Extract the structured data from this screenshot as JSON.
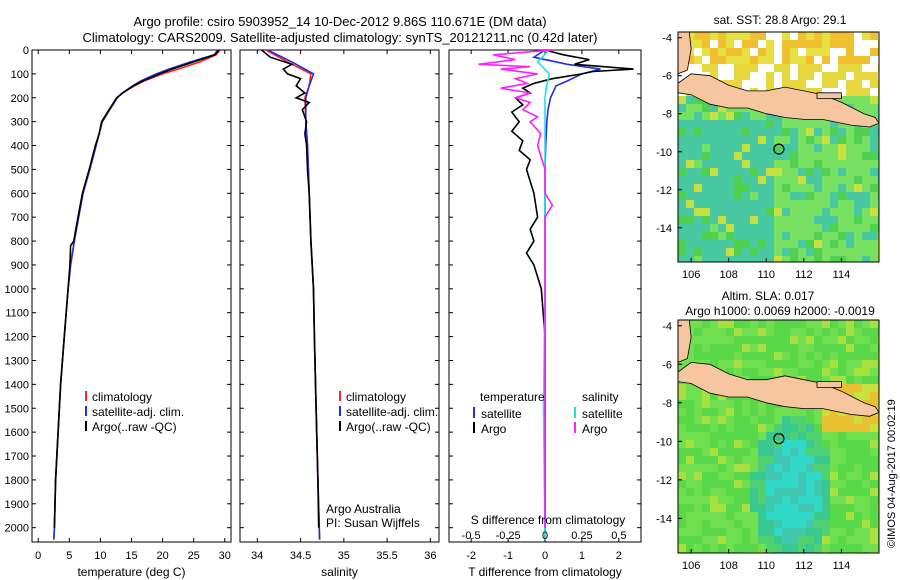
{
  "header": {
    "title_line1": "Argo profile: csiro 5903952_14 10-Dec-2012 9.86S 110.671E (DM data)",
    "title_line2": "Climatology: CARS2009. Satellite-adjusted climatology: synTS_20121211.nc (0.42d later)"
  },
  "credit": "©IMOS 04-Aug-2017 00:02:19",
  "colors": {
    "clim": "#ff2020",
    "sat": "#2030e0",
    "argo": "#000000",
    "sal_sat": "#20e0e8",
    "sal_argo": "#ff20ff",
    "land": "#f5c6a0",
    "sea_green": "#5ad24a",
    "sea_teal": "#3ec8a0",
    "warm": "#f0c020"
  },
  "chart_data": [
    {
      "id": "temperature",
      "type": "line",
      "xlabel": "temperature (deg C)",
      "xlim": [
        -1,
        31
      ],
      "xticks": [
        0,
        5,
        10,
        15,
        20,
        25,
        30
      ],
      "ylim": [
        0,
        2060
      ],
      "yticks": [
        0,
        100,
        200,
        300,
        400,
        500,
        600,
        700,
        800,
        900,
        1000,
        1100,
        1200,
        1300,
        1400,
        1500,
        1600,
        1700,
        1800,
        1900,
        2000
      ],
      "legend": [
        "climatology",
        "satellite-adj. clim.",
        "Argo(..raw -QC)"
      ],
      "series": [
        {
          "name": "climatology",
          "color_key": "clim",
          "depth": [
            0,
            20,
            50,
            80,
            100,
            130,
            150,
            180,
            200,
            250,
            300,
            400,
            500,
            600,
            700,
            800,
            900,
            1000,
            1200,
            1400,
            1600,
            1800,
            2000,
            2050
          ],
          "values": [
            29.2,
            28.6,
            26,
            22.5,
            20,
            17,
            15.5,
            13.5,
            12.7,
            11.5,
            10.3,
            9.3,
            8.3,
            7.2,
            6.5,
            5.8,
            5.2,
            4.8,
            4.2,
            3.6,
            3.2,
            2.8,
            2.6,
            2.5
          ]
        },
        {
          "name": "satellite-adj. clim.",
          "color_key": "sat",
          "depth": [
            0,
            20,
            50,
            80,
            100,
            130,
            150,
            180,
            200,
            250,
            300,
            400,
            500,
            600,
            700,
            800,
            900,
            1000,
            1200,
            1400,
            1600,
            1800,
            2000,
            2050
          ],
          "values": [
            28.9,
            28.3,
            24.5,
            21,
            19,
            16.5,
            15.2,
            13.5,
            12.7,
            11.5,
            10.3,
            9.3,
            8.3,
            7.2,
            6.5,
            5.8,
            5.2,
            4.8,
            4.2,
            3.6,
            3.2,
            2.8,
            2.6,
            2.5
          ]
        },
        {
          "name": "Argo(..raw -QC)",
          "color_key": "argo",
          "depth": [
            0,
            20,
            50,
            80,
            100,
            130,
            150,
            180,
            200,
            250,
            300,
            350,
            400,
            500,
            600,
            700,
            800,
            820,
            900,
            1000,
            1200,
            1400,
            1600,
            1800,
            2000
          ],
          "values": [
            29.1,
            28.4,
            25,
            21.5,
            19.5,
            16.8,
            15.3,
            13.6,
            12.6,
            11.4,
            10.2,
            9.8,
            9.2,
            8.2,
            7.1,
            6.4,
            5.7,
            5.2,
            5.1,
            4.8,
            4.2,
            3.6,
            3.2,
            2.8,
            2.6
          ]
        }
      ]
    },
    {
      "id": "salinity",
      "type": "line",
      "xlabel": "salinity",
      "xlim": [
        33.8,
        36.1
      ],
      "xticks": [
        34,
        34.5,
        35,
        35.5,
        36
      ],
      "xticklabels": [
        "34",
        "34.5",
        "35",
        "35.5",
        "36"
      ],
      "ylim": [
        0,
        2060
      ],
      "legend": [
        "climatology",
        "satellite-adj. clim.",
        "Argo(..raw -QC)"
      ],
      "annotation": [
        "Argo Australia",
        "PI: Susan Wijffels"
      ],
      "series": [
        {
          "name": "climatology",
          "color_key": "clim",
          "depth": [
            0,
            50,
            100,
            150,
            200,
            300,
            400,
            600,
            800,
            1000,
            1200,
            1500,
            1800,
            2050
          ],
          "values": [
            34.1,
            34.35,
            34.62,
            34.6,
            34.55,
            34.56,
            34.58,
            34.6,
            34.62,
            34.65,
            34.66,
            34.68,
            34.7,
            34.72
          ]
        },
        {
          "name": "satellite-adj. clim.",
          "color_key": "sat",
          "depth": [
            0,
            50,
            100,
            150,
            200,
            300,
            400,
            600,
            800,
            1000,
            1200,
            1500,
            1800,
            2050
          ],
          "values": [
            34.12,
            34.4,
            34.65,
            34.6,
            34.56,
            34.56,
            34.58,
            34.6,
            34.62,
            34.65,
            34.66,
            34.68,
            34.7,
            34.72
          ]
        },
        {
          "name": "Argo(..raw -QC)",
          "color_key": "argo",
          "depth": [
            0,
            30,
            60,
            80,
            100,
            120,
            150,
            180,
            200,
            220,
            250,
            300,
            350,
            400,
            500,
            600,
            800,
            1000,
            1200,
            1500,
            1800,
            2000
          ],
          "values": [
            34.05,
            34.15,
            34.4,
            34.3,
            34.35,
            34.5,
            34.45,
            34.55,
            34.45,
            34.6,
            34.52,
            34.57,
            34.55,
            34.57,
            34.58,
            34.6,
            34.62,
            34.65,
            34.66,
            34.68,
            34.7,
            34.71
          ]
        }
      ]
    },
    {
      "id": "differences",
      "type": "line",
      "xlabel": "T difference from climatology",
      "xlabel_top": "S difference from climatology",
      "xlim": [
        -2.6,
        2.6
      ],
      "xticks": [
        -2,
        -1,
        0,
        1,
        2
      ],
      "sticks": [
        -0.5,
        -0.25,
        0,
        0.25,
        0.5
      ],
      "sticklabels": [
        "-0.5",
        "-0.25",
        "0",
        "0.25",
        "0.5"
      ],
      "ylim": [
        0,
        2060
      ],
      "legend": {
        "temperature_title": "temperature",
        "salinity_title": "salinity",
        "items": [
          "satellite",
          "Argo",
          "satellite",
          "Argo"
        ]
      },
      "series": [
        {
          "name": "T satellite",
          "color_key": "sat",
          "depth": [
            0,
            30,
            60,
            80,
            100,
            130,
            150,
            200,
            250,
            300,
            400,
            500,
            700,
            1000,
            1500,
            2050
          ],
          "values": [
            0,
            -0.3,
            0.6,
            1.5,
            1.0,
            0.6,
            0.3,
            0.15,
            0.08,
            0.05,
            0.02,
            0,
            0,
            0,
            0,
            0
          ]
        },
        {
          "name": "T Argo",
          "color_key": "argo",
          "depth": [
            0,
            20,
            40,
            60,
            80,
            90,
            100,
            120,
            140,
            160,
            180,
            200,
            230,
            260,
            300,
            340,
            380,
            420,
            460,
            500,
            600,
            700,
            750,
            800,
            850,
            900,
            950,
            1000,
            1200,
            1500,
            2000
          ],
          "values": [
            0,
            0.5,
            1.2,
            0.8,
            2.4,
            1.3,
            1.0,
            0.2,
            -0.3,
            -0.6,
            -0.4,
            -0.8,
            -0.6,
            -0.9,
            -0.7,
            -0.9,
            -0.6,
            -0.7,
            -0.4,
            -0.5,
            -0.3,
            -0.2,
            -0.4,
            -0.3,
            -0.5,
            -0.3,
            -0.2,
            -0.1,
            0,
            0,
            0
          ]
        },
        {
          "name": "S satellite",
          "color_key": "sal_sat",
          "depth": [
            0,
            50,
            100,
            150,
            200,
            400,
            700,
            1000,
            1500,
            2050
          ],
          "values": [
            0.03,
            -0.05,
            0.03,
            0.01,
            0,
            0,
            0,
            0,
            -0.01,
            0
          ]
        },
        {
          "name": "S Argo",
          "color_key": "sal_argo",
          "depth": [
            0,
            20,
            40,
            60,
            70,
            80,
            100,
            120,
            140,
            160,
            180,
            200,
            220,
            250,
            280,
            300,
            350,
            400,
            500,
            600,
            650,
            700,
            800,
            1000,
            1500,
            2000
          ],
          "values": [
            0.05,
            -0.35,
            -0.2,
            -0.45,
            -0.1,
            -0.3,
            -0.05,
            -0.2,
            -0.12,
            -0.3,
            -0.1,
            -0.2,
            -0.1,
            -0.15,
            -0.05,
            -0.1,
            -0.03,
            -0.05,
            0,
            0,
            0.05,
            0,
            0,
            0,
            0,
            0
          ]
        }
      ]
    },
    {
      "id": "sst_map",
      "type": "heatmap",
      "title": "sat. SST: 28.8 Argo: 29.1",
      "xlim": [
        105.3,
        116
      ],
      "ylim": [
        -15.8,
        -3.7
      ],
      "xticks": [
        106,
        108,
        110,
        112,
        114
      ],
      "yticks": [
        -4,
        -6,
        -8,
        -10,
        -12,
        -14
      ],
      "marker": {
        "lon": 110.671,
        "lat": -9.86
      }
    },
    {
      "id": "sla_map",
      "type": "heatmap",
      "title": "Altim. SLA: 0.017",
      "subtitle": "Argo h1000: 0.0069 h2000: -0.0019",
      "xlim": [
        105.3,
        116
      ],
      "ylim": [
        -15.8,
        -3.7
      ],
      "xticks": [
        106,
        108,
        110,
        112,
        114
      ],
      "yticks": [
        -4,
        -6,
        -8,
        -10,
        -12,
        -14
      ],
      "marker": {
        "lon": 110.671,
        "lat": -9.86
      }
    }
  ]
}
